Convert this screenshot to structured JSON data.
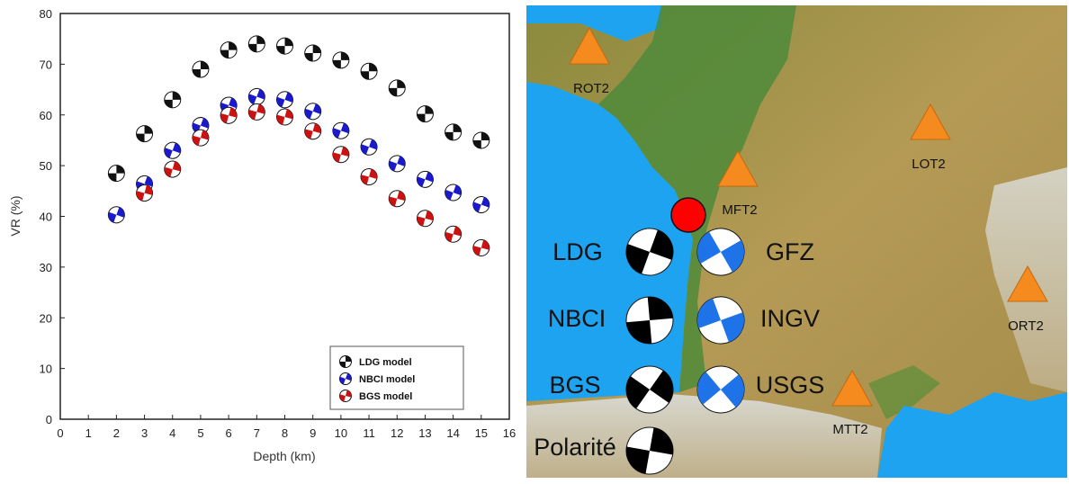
{
  "chart_data": {
    "type": "scatter",
    "xlabel": "Depth (km)",
    "ylabel": "VR (%)",
    "xlim": [
      0,
      16
    ],
    "ylim": [
      0,
      80
    ],
    "x_ticks": [
      0,
      1,
      2,
      3,
      4,
      5,
      6,
      7,
      8,
      9,
      10,
      11,
      12,
      13,
      14,
      15,
      16
    ],
    "y_ticks": [
      0,
      10,
      20,
      30,
      40,
      50,
      60,
      70,
      80
    ],
    "grid": false,
    "legend_position": "bottom-right",
    "series": [
      {
        "name": "LDG model",
        "color": "#111111",
        "points": [
          {
            "x": 2,
            "y": 48.5
          },
          {
            "x": 3,
            "y": 56.3
          },
          {
            "x": 4,
            "y": 63
          },
          {
            "x": 5,
            "y": 69
          },
          {
            "x": 6,
            "y": 72.8
          },
          {
            "x": 7,
            "y": 74
          },
          {
            "x": 8,
            "y": 73.6
          },
          {
            "x": 9,
            "y": 72.2
          },
          {
            "x": 10,
            "y": 70.8
          },
          {
            "x": 11,
            "y": 68.6
          },
          {
            "x": 12,
            "y": 65.3
          },
          {
            "x": 13,
            "y": 60.2
          },
          {
            "x": 14,
            "y": 56.6
          },
          {
            "x": 15,
            "y": 55
          }
        ]
      },
      {
        "name": "NBCI model",
        "color": "#1a1acc",
        "points": [
          {
            "x": 2,
            "y": 40.3
          },
          {
            "x": 3,
            "y": 46.4
          },
          {
            "x": 4,
            "y": 53
          },
          {
            "x": 5,
            "y": 57.9
          },
          {
            "x": 6,
            "y": 61.9
          },
          {
            "x": 7,
            "y": 63.6
          },
          {
            "x": 8,
            "y": 63
          },
          {
            "x": 9,
            "y": 60.7
          },
          {
            "x": 10,
            "y": 56.9
          },
          {
            "x": 11,
            "y": 53.7
          },
          {
            "x": 12,
            "y": 50.4
          },
          {
            "x": 13,
            "y": 47.3
          },
          {
            "x": 14,
            "y": 44.7
          },
          {
            "x": 15,
            "y": 42.3
          }
        ]
      },
      {
        "name": "BGS model",
        "color": "#cc1111",
        "points": [
          {
            "x": 3,
            "y": 44.6
          },
          {
            "x": 4,
            "y": 49.3
          },
          {
            "x": 5,
            "y": 55.5
          },
          {
            "x": 6,
            "y": 59.9
          },
          {
            "x": 7,
            "y": 60.6
          },
          {
            "x": 8,
            "y": 59.6
          },
          {
            "x": 9,
            "y": 56.8
          },
          {
            "x": 10,
            "y": 52.2
          },
          {
            "x": 11,
            "y": 47.8
          },
          {
            "x": 12,
            "y": 43.5
          },
          {
            "x": 13,
            "y": 39.6
          },
          {
            "x": 14,
            "y": 36.5
          },
          {
            "x": 15,
            "y": 33.8
          }
        ]
      }
    ]
  },
  "map": {
    "stations": [
      {
        "code": "ROT2",
        "color": "#f58a1f"
      },
      {
        "code": "LOT2",
        "color": "#f58a1f"
      },
      {
        "code": "MFT2",
        "color": "#f58a1f"
      },
      {
        "code": "ORT2",
        "color": "#f58a1f"
      },
      {
        "code": "MTT2",
        "color": "#f58a1f"
      }
    ],
    "epicenter_color": "#ff0000",
    "mechanisms": [
      {
        "label": "LDG",
        "color": "#000000"
      },
      {
        "label": "NBCI",
        "color": "#000000"
      },
      {
        "label": "BGS",
        "color": "#000000"
      },
      {
        "label": "Polarité",
        "color": "#000000"
      },
      {
        "label": "GFZ",
        "color": "#1e73e8"
      },
      {
        "label": "INGV",
        "color": "#1e73e8"
      },
      {
        "label": "USGS",
        "color": "#1e73e8"
      }
    ],
    "colors": {
      "sea": "#1ea3f0",
      "lowland": "#4f8a3a",
      "upland": "#b49a55",
      "mountain": "#e6e6e6"
    }
  }
}
